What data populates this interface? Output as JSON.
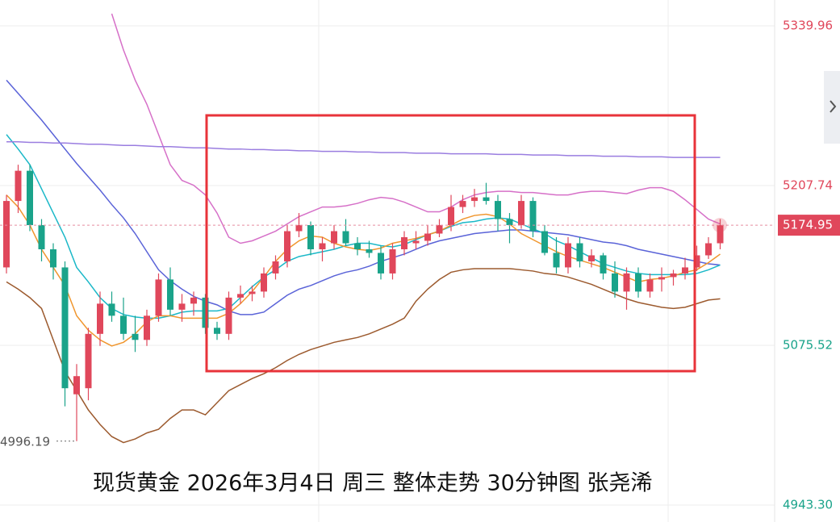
{
  "chart_data": {
    "type": "candlestick",
    "title": "现货黄金 2026年3月4日 周三 整体走势 30分钟图 张尧浠",
    "ylim": [
      4929.28,
      5361.33
    ],
    "yticks": [
      {
        "value": 4943.3,
        "label": "4943.30"
      },
      5075.52,
      5207.74,
      5339.96
    ],
    "grid": true,
    "last_price": 5174.95,
    "low_marker": 4996.19,
    "up_color": "#e0475b",
    "down_color": "#1aa38a",
    "open": [
      5140,
      5195,
      5220,
      5175,
      5155,
      5140,
      5035,
      5040,
      5085,
      5110,
      5100,
      5085,
      5080,
      5100,
      5130,
      5105,
      5110,
      5115,
      5090,
      5085,
      5115,
      5118,
      5120,
      5135,
      5145,
      5170,
      5175,
      5155,
      5160,
      5170,
      5160,
      5155,
      5152,
      5135,
      5155,
      5160,
      5162,
      5168,
      5175,
      5190,
      5195,
      5198,
      5195,
      5180,
      5175,
      5195,
      5170,
      5152,
      5140,
      5160,
      5145,
      5150,
      5135,
      5120,
      5135,
      5120,
      5130,
      5132,
      5135,
      5140,
      5150,
      5160
    ],
    "high": [
      5200,
      5225,
      5225,
      5180,
      5160,
      5145,
      5060,
      5090,
      5120,
      5120,
      5115,
      5100,
      5105,
      5135,
      5140,
      5118,
      5120,
      5118,
      5095,
      5120,
      5125,
      5125,
      5140,
      5150,
      5175,
      5185,
      5178,
      5165,
      5175,
      5180,
      5165,
      5162,
      5158,
      5160,
      5170,
      5170,
      5175,
      5180,
      5200,
      5200,
      5205,
      5210,
      5200,
      5185,
      5200,
      5198,
      5175,
      5165,
      5165,
      5165,
      5155,
      5152,
      5145,
      5140,
      5140,
      5135,
      5140,
      5138,
      5148,
      5158,
      5165,
      5180
    ],
    "low": [
      5135,
      5185,
      5170,
      5145,
      5130,
      5025,
      4996.19,
      5030,
      5075,
      5095,
      5080,
      5070,
      5075,
      5095,
      5100,
      5095,
      5100,
      5085,
      5080,
      5080,
      5110,
      5112,
      5115,
      5130,
      5140,
      5165,
      5150,
      5145,
      5155,
      5158,
      5150,
      5148,
      5130,
      5130,
      5150,
      5155,
      5158,
      5165,
      5170,
      5185,
      5190,
      5192,
      5170,
      5160,
      5172,
      5165,
      5150,
      5135,
      5135,
      5140,
      5140,
      5130,
      5115,
      5105,
      5115,
      5115,
      5120,
      5125,
      5130,
      5137,
      5147,
      5155
    ],
    "close": [
      5195,
      5220,
      5175,
      5155,
      5140,
      5040,
      5050,
      5085,
      5110,
      5100,
      5085,
      5080,
      5100,
      5130,
      5105,
      5110,
      5115,
      5090,
      5085,
      5115,
      5118,
      5120,
      5135,
      5145,
      5170,
      5175,
      5155,
      5160,
      5170,
      5160,
      5155,
      5152,
      5135,
      5155,
      5165,
      5162,
      5168,
      5175,
      5190,
      5195,
      5198,
      5195,
      5180,
      5175,
      5195,
      5170,
      5152,
      5140,
      5160,
      5145,
      5150,
      5135,
      5120,
      5135,
      5120,
      5130,
      5132,
      5135,
      5140,
      5150,
      5160,
      5174.95
    ],
    "series": [
      {
        "color": "#d670c8",
        "values": [
          null,
          null,
          null,
          null,
          null,
          null,
          null,
          null,
          null,
          5350,
          5320,
          5295,
          5275,
          5250,
          5225,
          5212,
          5208,
          5200,
          5185,
          5165,
          5160,
          5162,
          5166,
          5170,
          5176,
          5182,
          5186,
          5190,
          5190,
          5191,
          5193,
          5196,
          5198,
          5197,
          5194,
          5190,
          5186,
          5186,
          5190,
          5196,
          5200,
          5202,
          5203,
          5203,
          5202,
          5202,
          5201,
          5200,
          5200,
          5202,
          5203,
          5203,
          5202,
          5201,
          5204,
          5206,
          5206,
          5203,
          5196,
          5188,
          5180,
          5176
        ]
      },
      {
        "color": "#9c5a2e",
        "values": [
          5128,
          5122,
          5115,
          5106,
          5080,
          5054,
          5038,
          5022,
          5010,
          5000,
          4995,
          4998,
          5003,
          5006,
          5015,
          5022,
          5022,
          5018,
          5028,
          5038,
          5043,
          5048,
          5052,
          5057,
          5063,
          5068,
          5072,
          5075,
          5078,
          5080,
          5082,
          5085,
          5089,
          5093,
          5098,
          5112,
          5122,
          5130,
          5136,
          5138,
          5139,
          5139,
          5139,
          5139,
          5138,
          5137,
          5135,
          5134,
          5132,
          5129,
          5126,
          5122,
          5118,
          5114,
          5111,
          5109,
          5107,
          5106,
          5107,
          5110,
          5113,
          5114
        ]
      },
      {
        "color": "#5a63d8",
        "values": [
          5295,
          5284,
          5273,
          5262,
          5250,
          5238,
          5226,
          5215,
          5204,
          5192,
          5181,
          5168,
          5153,
          5138,
          5129,
          5122,
          5116,
          5112,
          5109,
          5104,
          5101,
          5101,
          5103,
          5110,
          5117,
          5122,
          5125,
          5129,
          5133,
          5136,
          5138,
          5141,
          5145,
          5148,
          5151,
          5155,
          5159,
          5162,
          5164,
          5166,
          5168,
          5169,
          5170,
          5171,
          5171,
          5170,
          5169,
          5168,
          5167,
          5165,
          5163,
          5161,
          5160,
          5158,
          5155,
          5153,
          5151,
          5149,
          5147,
          5145,
          5143,
          5142
        ]
      },
      {
        "color": "#1bb8c8",
        "values": [
          5250,
          5238,
          5225,
          5205,
          5185,
          5165,
          5140,
          5128,
          5115,
          5106,
          5101,
          5099,
          5098,
          5098,
          5100,
          5103,
          5104,
          5104,
          5104,
          5106,
          5115,
          5124,
          5132,
          5138,
          5145,
          5149,
          5151,
          5153,
          5155,
          5158,
          5160,
          5160,
          5158,
          5157,
          5159,
          5163,
          5167,
          5170,
          5174,
          5177,
          5178,
          5180,
          5181,
          5180,
          5176,
          5172,
          5168,
          5162,
          5158,
          5153,
          5148,
          5143,
          5140,
          5137,
          5135,
          5134,
          5134,
          5134,
          5134,
          5135,
          5138,
          5142
        ]
      },
      {
        "color": "#f0962e",
        "values": [
          5200,
          5190,
          5175,
          5155,
          5140,
          5125,
          5100,
          5088,
          5080,
          5075,
          5078,
          5085,
          5095,
          5100,
          5100,
          5098,
          5098,
          5098,
          5098,
          5102,
          5110,
          5120,
          5132,
          5145,
          5155,
          5162,
          5166,
          5165,
          5160,
          5157,
          5155,
          5154,
          5156,
          5160,
          5162,
          5164,
          5167,
          5170,
          5175,
          5180,
          5183,
          5184,
          5182,
          5176,
          5168,
          5163,
          5158,
          5153,
          5149,
          5146,
          5143,
          5140,
          5136,
          5132,
          5128,
          5130,
          5131,
          5133,
          5136,
          5138,
          5144,
          5151
        ]
      },
      {
        "color": "#9a7de0",
        "values": [
          5244,
          5244,
          5243.5,
          5243.5,
          5243,
          5243,
          5242.5,
          5242,
          5242,
          5241.5,
          5241,
          5241,
          5240.5,
          5240,
          5240,
          5239.5,
          5239,
          5239,
          5238.5,
          5238,
          5238,
          5237.5,
          5237.5,
          5237,
          5237,
          5236.5,
          5236.5,
          5236,
          5236,
          5236,
          5235.5,
          5235.5,
          5235,
          5235,
          5235,
          5234.5,
          5234.5,
          5234.5,
          5234,
          5234,
          5234,
          5234,
          5233.5,
          5233.5,
          5233.5,
          5233,
          5233,
          5233,
          5232.5,
          5232.5,
          5232.5,
          5232,
          5232,
          5232,
          5231.5,
          5231.5,
          5231.5,
          5231,
          5231,
          5231,
          5231,
          5231
        ]
      }
    ]
  }
}
